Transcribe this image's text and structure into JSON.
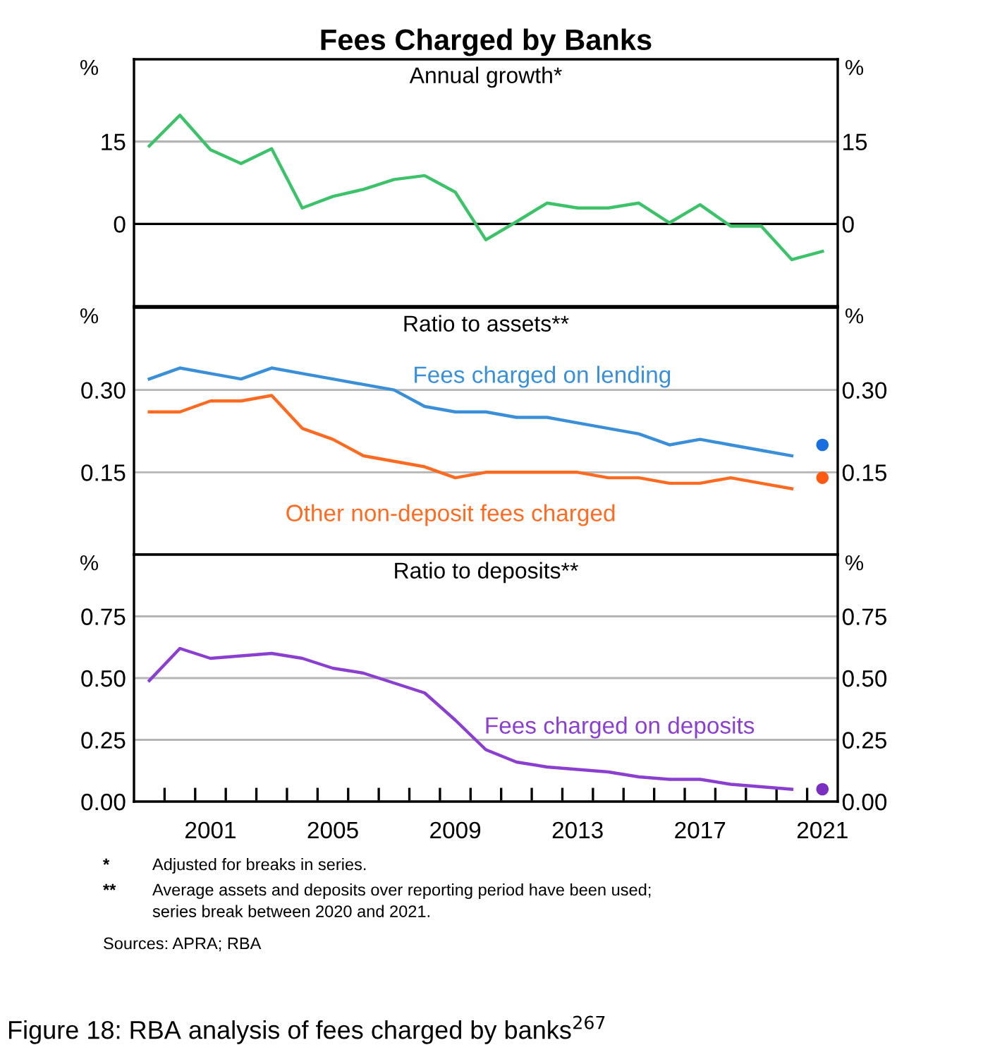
{
  "chart_data": [
    {
      "type": "line",
      "title": "Fees Charged by Banks",
      "subtitle": "Annual growth*",
      "ylabel": "%",
      "y2label": "%",
      "x": [
        1999,
        2000,
        2001,
        2002,
        2003,
        2004,
        2005,
        2006,
        2007,
        2008,
        2009,
        2010,
        2011,
        2012,
        2013,
        2014,
        2015,
        2016,
        2017,
        2018,
        2019,
        2020,
        2021
      ],
      "series": [
        {
          "color": "#3cc36a",
          "values": [
            14.2,
            19.8,
            13.5,
            11.0,
            13.7,
            2.9,
            5.0,
            6.3,
            8.1,
            8.8,
            5.8,
            -2.9,
            0.4,
            3.8,
            2.9,
            2.9,
            3.8,
            0.2,
            3.5,
            -0.4,
            -0.4,
            -6.5,
            -5.0
          ]
        }
      ],
      "xlim": [
        1998.5,
        2021.5
      ],
      "ylim": [
        -15,
        30
      ],
      "yticks": [
        0,
        15
      ],
      "y2lim": [
        -15,
        30
      ],
      "y2ticks": [
        0,
        15
      ],
      "ref_lines": [
        {
          "axis": "y",
          "value": 15,
          "color": "#b5b5b5"
        },
        {
          "axis": "y",
          "value": 0,
          "color": "#000000"
        }
      ],
      "grid": false,
      "tick_labels": "y",
      "legend": false
    },
    {
      "type": "line",
      "subtitle": "Ratio to assets**",
      "ylabel": "%",
      "y2label": "%",
      "x": [
        1999,
        2000,
        2001,
        2002,
        2003,
        2004,
        2005,
        2006,
        2007,
        2008,
        2009,
        2010,
        2011,
        2012,
        2013,
        2014,
        2015,
        2016,
        2017,
        2018,
        2019,
        2020,
        2021
      ],
      "series": [
        {
          "name": "Fees charged on lending",
          "color": "#3a8fd9",
          "values": [
            0.32,
            0.34,
            0.33,
            0.32,
            0.34,
            0.33,
            0.32,
            0.31,
            0.3,
            0.27,
            0.26,
            0.26,
            0.25,
            0.25,
            0.24,
            0.23,
            0.22,
            0.2,
            0.21,
            0.2,
            0.19,
            0.18,
            null
          ]
        },
        {
          "name": "Other non-deposit fees charged",
          "color": "#ff6a21",
          "values": [
            0.26,
            0.26,
            0.28,
            0.28,
            0.29,
            0.23,
            0.21,
            0.18,
            0.17,
            0.16,
            0.14,
            0.15,
            0.15,
            0.15,
            0.15,
            0.14,
            0.14,
            0.13,
            0.13,
            0.14,
            0.13,
            0.12,
            null
          ]
        },
        {
          "type": "scatter",
          "color": "#1a6fe0",
          "values": [
            null,
            null,
            null,
            null,
            null,
            null,
            null,
            null,
            null,
            null,
            null,
            null,
            null,
            null,
            null,
            null,
            null,
            null,
            null,
            null,
            null,
            null,
            0.2
          ]
        },
        {
          "type": "scatter",
          "color": "#ff5a14",
          "values": [
            null,
            null,
            null,
            null,
            null,
            null,
            null,
            null,
            null,
            null,
            null,
            null,
            null,
            null,
            null,
            null,
            null,
            null,
            null,
            null,
            null,
            null,
            0.14
          ]
        }
      ],
      "xlim": [
        1998.5,
        2021.5
      ],
      "ylim": [
        0,
        0.45
      ],
      "yticks": [
        {
          "value": 0.15,
          "label": "0.15"
        },
        {
          "value": 0.3,
          "label": "0.30"
        }
      ],
      "y2lim": [
        0,
        0.45
      ],
      "y2ticks": [
        {
          "value": 0.15,
          "label": "0.15"
        },
        {
          "value": 0.3,
          "label": "0.30"
        }
      ],
      "grid": "y",
      "tick_labels": "y",
      "legend": false
    },
    {
      "type": "line",
      "subtitle": "Ratio to deposits**",
      "ylabel": "%",
      "y2label": "%",
      "x": [
        1999,
        2000,
        2001,
        2002,
        2003,
        2004,
        2005,
        2006,
        2007,
        2008,
        2009,
        2010,
        2011,
        2012,
        2013,
        2014,
        2015,
        2016,
        2017,
        2018,
        2019,
        2020,
        2021
      ],
      "series": [
        {
          "name": "Fees charged on deposits",
          "color": "#8b3fd1",
          "values": [
            0.49,
            0.62,
            0.58,
            0.59,
            0.6,
            0.58,
            0.54,
            0.52,
            0.48,
            0.44,
            0.33,
            0.21,
            0.16,
            0.14,
            0.13,
            0.12,
            0.1,
            0.09,
            0.09,
            0.07,
            0.06,
            0.05,
            null
          ]
        },
        {
          "type": "scatter",
          "color": "#7a2fc0",
          "values": [
            null,
            null,
            null,
            null,
            null,
            null,
            null,
            null,
            null,
            null,
            null,
            null,
            null,
            null,
            null,
            null,
            null,
            null,
            null,
            null,
            null,
            null,
            0.05
          ]
        }
      ],
      "xlim": [
        1998.5,
        2021.5
      ],
      "ylim": [
        0,
        1
      ],
      "xticks": [
        {
          "value": 1999.5,
          "label": null
        },
        {
          "value": 2000.5,
          "label": null
        },
        {
          "value": 2001.5,
          "label": null
        },
        {
          "value": 2002.5,
          "label": null
        },
        {
          "value": 2003.5,
          "label": null
        },
        {
          "value": 2004.5,
          "label": null
        },
        {
          "value": 2005.5,
          "label": null
        },
        {
          "value": 2006.5,
          "label": null
        },
        {
          "value": 2007.5,
          "label": null
        },
        {
          "value": 2008.5,
          "label": null
        },
        {
          "value": 2009.5,
          "label": null
        },
        {
          "value": 2010.5,
          "label": null
        },
        {
          "value": 2011.5,
          "label": null
        },
        {
          "value": 2012.5,
          "label": null
        },
        {
          "value": 2013.5,
          "label": null
        },
        {
          "value": 2014.5,
          "label": null
        },
        {
          "value": 2015.5,
          "label": null
        },
        {
          "value": 2016.5,
          "label": null
        },
        {
          "value": 2017.5,
          "label": null
        },
        {
          "value": 2018.5,
          "label": null
        },
        {
          "value": 2019.5,
          "label": null
        },
        {
          "value": 2020.5,
          "label": null
        },
        {
          "value": 2001,
          "label": "2001"
        },
        {
          "value": 2005,
          "label": "2005"
        },
        {
          "value": 2009,
          "label": "2009"
        },
        {
          "value": 2013,
          "label": "2013"
        },
        {
          "value": 2017,
          "label": "2017"
        },
        {
          "value": 2021,
          "label": "2021"
        }
      ],
      "yticks": [
        {
          "value": 0,
          "label": "0.00"
        },
        {
          "value": 0.25,
          "label": "0.25"
        },
        {
          "value": 0.5,
          "label": "0.50"
        },
        {
          "value": 0.75,
          "label": "0.75"
        }
      ],
      "y2ticks": [
        {
          "value": 0,
          "label": "0.00"
        },
        {
          "value": 0.25,
          "label": "0.25"
        },
        {
          "value": 0.5,
          "label": "0.50"
        },
        {
          "value": 0.75,
          "label": "0.75"
        }
      ],
      "y2lim": [
        0,
        1
      ],
      "grid": "y",
      "legend": false,
      "annotations": [
        "*",
        "Adjusted for breaks in series.",
        "**",
        "Average assets and deposits over reporting period have been used;\nseries break between 2020 and 2021.",
        "Sources: APRA; RBA",
        "Figure 18: RBA analysis of fees charged by banks$^{267}$"
      ]
    }
  ]
}
